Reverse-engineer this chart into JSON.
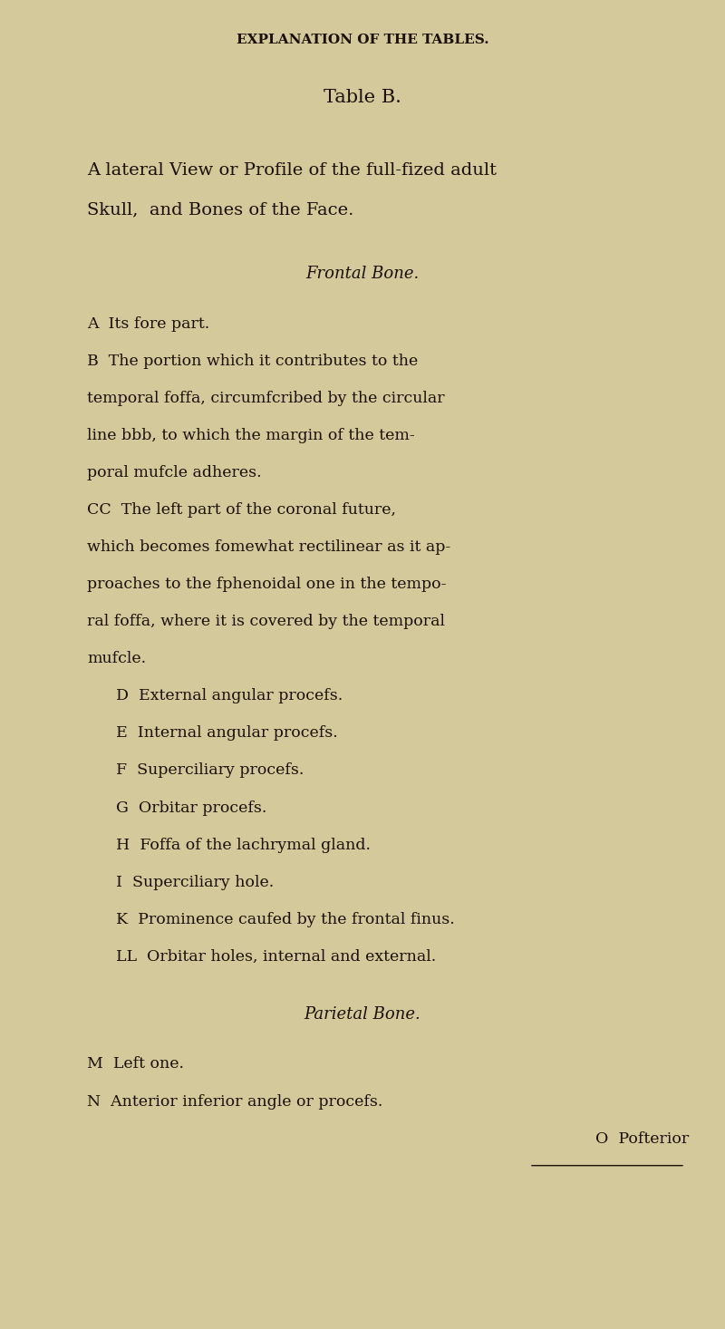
{
  "background_color": "#d4c99a",
  "text_color": "#1a1008",
  "page_width": 8.0,
  "page_height": 14.66,
  "header": "EXPLANATION OF THE TABLES.",
  "title": "Table B.",
  "subtitle": "A lateral View or Profile of the full-fized adult\n   Skull,  and Bones of the Face.",
  "section1_heading": "Frontal Bone.",
  "section1_lines": [
    {
      "indent": "small",
      "text": "A  Its fore part."
    },
    {
      "indent": "small",
      "text": "B  The portion which it contributes to the\ntemporal foffa, circumfcribed by the circular\nline bbb, to which the margin of the tem-\nporal mufcle adheres."
    },
    {
      "indent": "small",
      "text": "CC  The left part of the coronal future,\nwhich becomes fomewhat rectilinear as it ap-\nproaches to the fphenoidal one in the tempo-\nral foffa, where it is covered by the temporal\nmufcle."
    },
    {
      "indent": "medium",
      "text": "D  External angular procefs."
    },
    {
      "indent": "medium",
      "text": "E  Internal angular procefs."
    },
    {
      "indent": "medium",
      "text": "F  Superciliary procefs."
    },
    {
      "indent": "medium",
      "text": "G  Orbitar procefs."
    },
    {
      "indent": "medium",
      "text": "H  Foffa of the lachrymal gland."
    },
    {
      "indent": "medium",
      "text": "I  Superciliary hole."
    },
    {
      "indent": "medium",
      "text": "K  Prominence caufed by the frontal finus."
    },
    {
      "indent": "medium",
      "text": "LL  Orbitar holes, internal and external."
    }
  ],
  "section2_heading": "Parietal Bone.",
  "section2_lines": [
    {
      "indent": "small",
      "text": "M  Left one."
    },
    {
      "indent": "small",
      "text": "N  Anterior inferior angle or procefs."
    },
    {
      "indent": "right",
      "text": "O  Pofterior"
    }
  ]
}
